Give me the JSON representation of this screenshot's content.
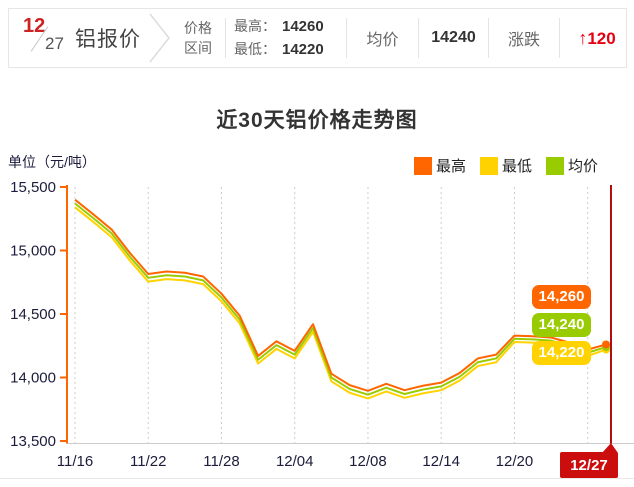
{
  "header": {
    "date_month": "12",
    "date_day": "27",
    "product": "铝报价",
    "range_label_line1": "价格",
    "range_label_line2": "区间",
    "high_label": "最高：",
    "high_value": "14260",
    "low_label": "最低：",
    "low_value": "14220",
    "avg_label": "均价",
    "avg_value": "14240",
    "change_label": "涨跌",
    "change_arrow": "↑",
    "change_value": "120",
    "accent_red": "#e60012"
  },
  "chart": {
    "title": "近30天铝价格走势图",
    "unit_label": "单位（元/吨）",
    "legend": [
      {
        "label": "最高",
        "color": "#ff6600"
      },
      {
        "label": "最低",
        "color": "#ffd200"
      },
      {
        "label": "均价",
        "color": "#99cc00"
      }
    ],
    "end_badges": [
      {
        "text": "14,260",
        "color": "#ff6600"
      },
      {
        "text": "14,240",
        "color": "#99cc00"
      },
      {
        "text": "14,220",
        "color": "#ffd200"
      }
    ],
    "today_badge": "12/27",
    "today_badge_color": "#cc0d0d",
    "today_line_color": "#b30b0b"
  },
  "chart_data": {
    "type": "line",
    "title": "近30天铝价格走势图",
    "ylabel": "单位（元/吨）",
    "ylim": [
      13500,
      15500
    ],
    "y_ticks": [
      {
        "value": 15500,
        "label": "15,500"
      },
      {
        "value": 15000,
        "label": "15,000"
      },
      {
        "value": 14500,
        "label": "14,500"
      },
      {
        "value": 14000,
        "label": "14,000"
      },
      {
        "value": 13500,
        "label": "13,500"
      }
    ],
    "n_points": 30,
    "grid_indices": [
      0,
      4,
      8,
      12,
      16,
      20,
      24,
      28
    ],
    "x_ticks": [
      {
        "index": 0,
        "label": "11/16"
      },
      {
        "index": 4,
        "label": "11/22"
      },
      {
        "index": 8,
        "label": "11/28"
      },
      {
        "index": 12,
        "label": "12/04"
      },
      {
        "index": 16,
        "label": "12/08"
      },
      {
        "index": 20,
        "label": "12/14"
      },
      {
        "index": 24,
        "label": "12/20"
      }
    ],
    "today": {
      "index": 29,
      "label": "12/27"
    },
    "legend_position": "top-right",
    "grid": "vertical-dashed",
    "series": [
      {
        "name": "最低",
        "color": "#ffd200",
        "values": [
          15340,
          15225,
          15105,
          14920,
          14755,
          14775,
          14765,
          14735,
          14600,
          14425,
          14110,
          14225,
          14150,
          14360,
          13970,
          13880,
          13835,
          13890,
          13840,
          13875,
          13900,
          13975,
          14090,
          14120,
          14280,
          14275,
          14265,
          14225,
          14170,
          14220
        ]
      },
      {
        "name": "均价",
        "color": "#99cc00",
        "values": [
          15370,
          15255,
          15135,
          14950,
          14785,
          14805,
          14795,
          14765,
          14630,
          14455,
          14140,
          14255,
          14180,
          14390,
          14000,
          13910,
          13865,
          13920,
          13870,
          13905,
          13930,
          14005,
          14120,
          14150,
          14305,
          14300,
          14290,
          14250,
          14195,
          14240
        ]
      },
      {
        "name": "最高",
        "color": "#ff6600",
        "values": [
          15400,
          15285,
          15165,
          14980,
          14815,
          14835,
          14825,
          14795,
          14660,
          14485,
          14170,
          14285,
          14210,
          14420,
          14030,
          13940,
          13895,
          13950,
          13900,
          13935,
          13960,
          14035,
          14150,
          14180,
          14330,
          14325,
          14315,
          14275,
          14220,
          14260
        ]
      }
    ],
    "end_values": {
      "最高": 14260,
      "均价": 14240,
      "最低": 14220
    }
  }
}
